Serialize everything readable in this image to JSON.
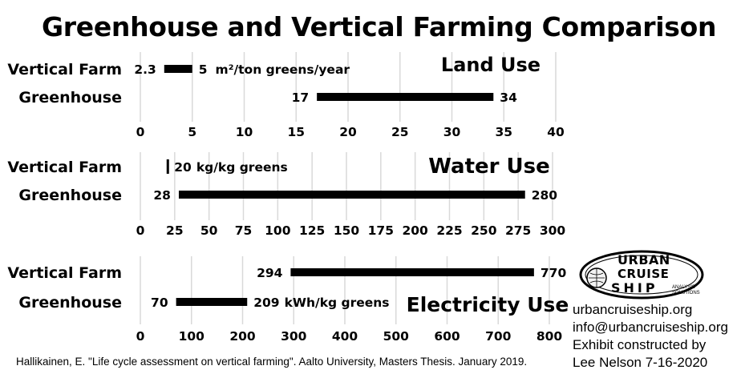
{
  "title": "Greenhouse and Vertical Farming Comparison",
  "source": "Hallikainen, E. \"Life cycle assessment on vertical farming\". Aalto University, Masters Thesis. January 2019.",
  "logo": {
    "lines": [
      "URBAN",
      "CRUISE",
      "SHIP"
    ],
    "sub": [
      "ANALYSIS",
      "SOLUTIONS"
    ]
  },
  "credits": [
    "urbancruiseship.org",
    "info@urbancruiseship.org",
    "Exhibit constructed by",
    "Lee Nelson 7-16-2020"
  ],
  "colors": {
    "bar": "#000000",
    "grid": "#d9d9d9",
    "background": "#ffffff"
  },
  "chart_data": [
    {
      "type": "bar",
      "orientation": "horizontal-range",
      "title": "Land Use",
      "categories": [
        "Vertical Farm",
        "Greenhouse"
      ],
      "ranges": [
        [
          2.3,
          5
        ],
        [
          17,
          34
        ]
      ],
      "min_labels": [
        "2.3",
        "17"
      ],
      "max_labels": [
        "5",
        "34"
      ],
      "unit_label": "m²/ton greens/year",
      "xlim": [
        0,
        40
      ],
      "xticks": [
        0,
        5,
        10,
        15,
        20,
        25,
        30,
        35,
        40
      ],
      "grid": true
    },
    {
      "type": "bar",
      "orientation": "horizontal-range",
      "title": "Water Use",
      "categories": [
        "Vertical Farm",
        "Greenhouse"
      ],
      "ranges": [
        [
          20,
          20
        ],
        [
          28,
          280
        ]
      ],
      "min_labels": [
        "",
        "28"
      ],
      "max_labels": [
        "20",
        "280"
      ],
      "unit_label": "kg/kg greens",
      "xlim": [
        0,
        300
      ],
      "xticks": [
        0,
        25,
        50,
        75,
        100,
        125,
        150,
        175,
        200,
        225,
        250,
        275,
        300
      ],
      "grid": true
    },
    {
      "type": "bar",
      "orientation": "horizontal-range",
      "title": "Electricity Use",
      "categories": [
        "Vertical Farm",
        "Greenhouse"
      ],
      "ranges": [
        [
          294,
          770
        ],
        [
          70,
          209
        ]
      ],
      "min_labels": [
        "294",
        "70"
      ],
      "max_labels": [
        "770",
        "209"
      ],
      "unit_label": "kWh/kg greens",
      "xlim": [
        0,
        800
      ],
      "xticks": [
        0,
        100,
        200,
        300,
        400,
        500,
        600,
        700,
        800
      ],
      "grid": true
    }
  ]
}
